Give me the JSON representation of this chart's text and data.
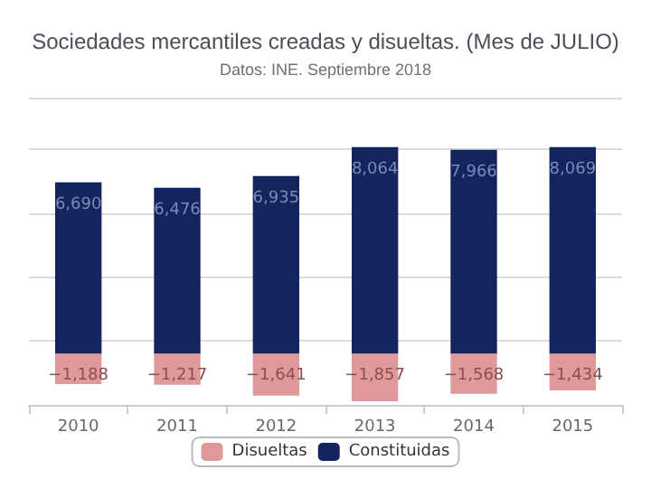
{
  "chart_data": {
    "type": "bar",
    "title": "Sociedades mercantiles creadas y disueltas. (Mes de JULIO)",
    "subtitle": "Datos: INE. Septiembre 2018",
    "categories": [
      "2010",
      "2011",
      "2012",
      "2013",
      "2014",
      "2015"
    ],
    "series": [
      {
        "name": "Disueltas",
        "color": "#e0999a",
        "values": [
          -1188,
          -1217,
          -1641,
          -1857,
          -1568,
          -1434
        ],
        "value_labels": [
          "−1,188",
          "−1,217",
          "−1,641",
          "−1,857",
          "−1,568",
          "−1,434"
        ]
      },
      {
        "name": "Constituidas",
        "color": "#13255f",
        "values": [
          6690,
          6476,
          6935,
          8064,
          7966,
          8069
        ],
        "value_labels": [
          "6,690",
          "6,476",
          "6,935",
          "8,064",
          "7,966",
          "8,069"
        ]
      }
    ],
    "stacked": true,
    "tick_labels": "x",
    "grid": "y",
    "legend": "bottom"
  }
}
